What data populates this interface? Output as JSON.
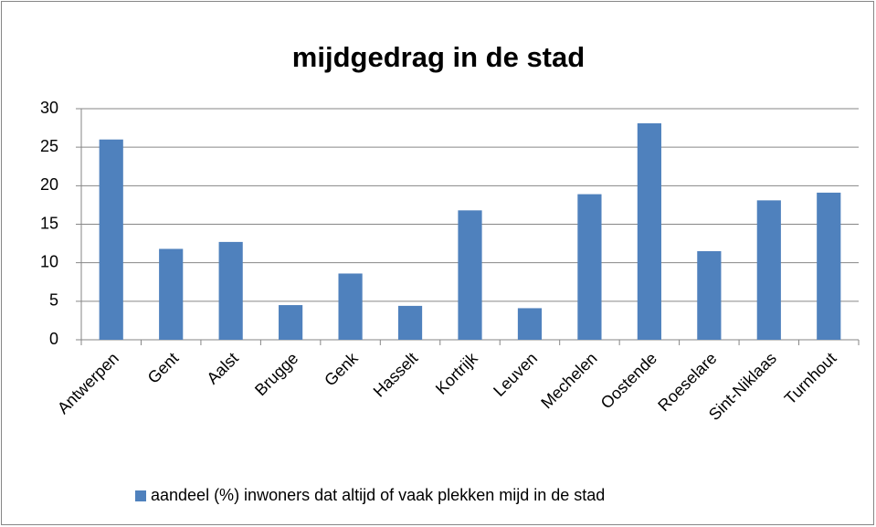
{
  "chart_data": {
    "type": "bar",
    "title": "mijdgedrag in de stad",
    "categories": [
      "Antwerpen",
      "Gent",
      "Aalst",
      "Brugge",
      "Genk",
      "Hasselt",
      "Kortrijk",
      "Leuven",
      "Mechelen",
      "Oostende",
      "Roeselare",
      "Sint-Niklaas",
      "Turnhout"
    ],
    "series": [
      {
        "name": "aandeel (%) inwoners dat altijd of vaak plekken mijd in de stad",
        "color": "#4f81bd",
        "values": [
          26,
          11.8,
          12.7,
          4.5,
          8.6,
          4.4,
          16.8,
          4.1,
          18.9,
          28.1,
          11.5,
          18.1,
          19.1
        ]
      }
    ],
    "ylim": [
      0,
      30
    ],
    "yticks": [
      0,
      5,
      10,
      15,
      20,
      25,
      30
    ],
    "grid": true,
    "legend": "bottom"
  }
}
